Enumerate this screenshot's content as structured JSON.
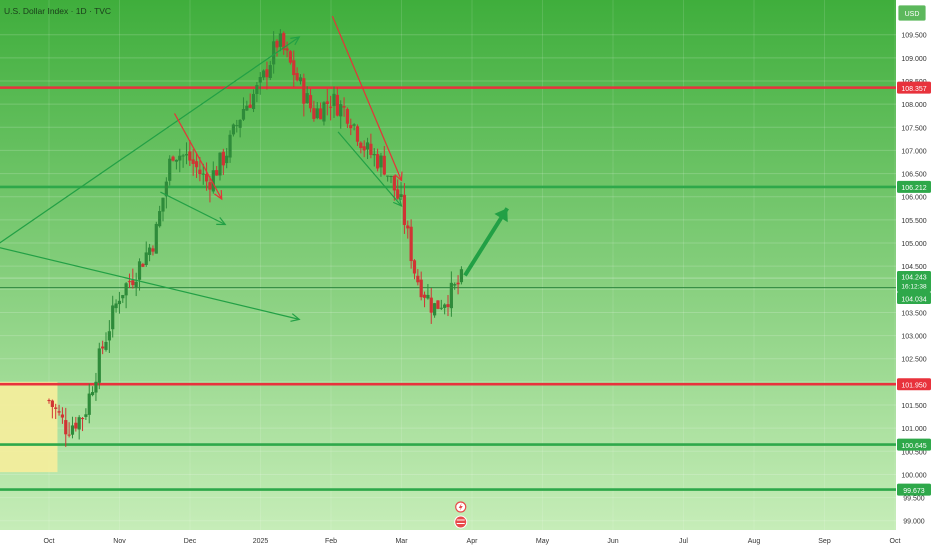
{
  "header": {
    "title": "U.S. Dollar Index · 1D · TVC",
    "currency_badge": "USD"
  },
  "colors": {
    "plot_gradient_top": "#3fae3c",
    "plot_gradient_bottom": "#c6edb8",
    "candle_up": "#2e8b3a",
    "candle_down": "#d03434",
    "resistance_line": "#e8323c",
    "support_line": "#2ea84a",
    "trend_arrow_up": "#22a045",
    "trend_arrow_down": "#e63238",
    "consolidation_box": "#f5ee9c",
    "axis_background": "#ffffff",
    "axis_text": "#333333",
    "price_tag_current": "#2ea84a"
  },
  "chart_data": {
    "type": "candlestick",
    "title": "U.S. Dollar Index · 1D · TVC",
    "y_axis": {
      "range": [
        98.8,
        110.25
      ],
      "ticks": [
        "109.500",
        "109.000",
        "108.500",
        "108.000",
        "107.500",
        "107.000",
        "106.500",
        "106.000",
        "105.500",
        "105.000",
        "104.500",
        "104.000",
        "103.500",
        "103.000",
        "102.500",
        "102.000",
        "101.500",
        "101.000",
        "100.500",
        "100.000",
        "99.500",
        "99.000"
      ]
    },
    "x_axis": {
      "labels": [
        "Oct",
        "Nov",
        "Dec",
        "2025",
        "Feb",
        "Mar",
        "Apr",
        "May",
        "Jun",
        "Jul",
        "Aug",
        "Sep",
        "Oct"
      ]
    },
    "horizontal_levels": [
      {
        "value": 108.357,
        "label": "108.357",
        "kind": "resistance"
      },
      {
        "value": 106.212,
        "label": "106.212",
        "kind": "support"
      },
      {
        "value": 101.95,
        "label": "101.950",
        "kind": "resistance"
      },
      {
        "value": 100.645,
        "label": "100.645",
        "kind": "support"
      },
      {
        "value": 99.673,
        "label": "99.673",
        "kind": "support"
      }
    ],
    "current_price": {
      "value": 104.243,
      "label": "104.243",
      "countdown": "16:12:38"
    },
    "reference_price": {
      "value": 104.034,
      "label": "104.034"
    },
    "close_series": [
      {
        "month_index": 0.0,
        "close": 101.6
      },
      {
        "month_index": 0.25,
        "close": 101.0
      },
      {
        "month_index": 0.5,
        "close": 101.3
      },
      {
        "month_index": 0.75,
        "close": 102.7
      },
      {
        "month_index": 1.0,
        "close": 103.9
      },
      {
        "month_index": 1.2,
        "close": 104.3
      },
      {
        "month_index": 1.5,
        "close": 105.1
      },
      {
        "month_index": 1.75,
        "close": 107.0
      },
      {
        "month_index": 2.0,
        "close": 106.8
      },
      {
        "month_index": 2.25,
        "close": 106.3
      },
      {
        "month_index": 2.5,
        "close": 106.9
      },
      {
        "month_index": 2.75,
        "close": 107.9
      },
      {
        "month_index": 3.0,
        "close": 108.4
      },
      {
        "month_index": 3.25,
        "close": 109.4
      },
      {
        "month_index": 3.5,
        "close": 108.6
      },
      {
        "month_index": 3.75,
        "close": 107.8
      },
      {
        "month_index": 4.0,
        "close": 108.1
      },
      {
        "month_index": 4.25,
        "close": 107.8
      },
      {
        "month_index": 4.5,
        "close": 107.0
      },
      {
        "month_index": 4.75,
        "close": 106.7
      },
      {
        "month_index": 5.0,
        "close": 105.8
      },
      {
        "month_index": 5.2,
        "close": 104.3
      },
      {
        "month_index": 5.45,
        "close": 103.6
      },
      {
        "month_index": 5.7,
        "close": 103.9
      },
      {
        "month_index": 5.85,
        "close": 104.2
      }
    ]
  }
}
